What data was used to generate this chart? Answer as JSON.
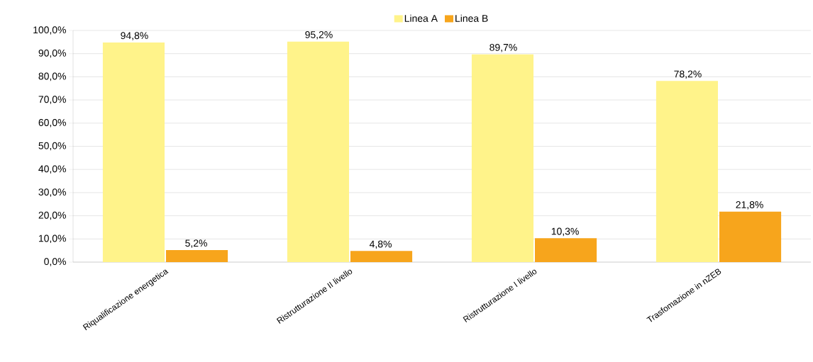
{
  "chart_data": {
    "type": "bar",
    "categories": [
      "Riqualificazione energetica",
      "Ristrutturazione II livello",
      "Ristrutturazione I livello",
      "Trasfomazione in nZEB"
    ],
    "series": [
      {
        "name": "Linea A",
        "color": "#fff38a",
        "values": [
          94.8,
          95.2,
          89.7,
          78.2
        ],
        "value_labels": [
          "94,8%",
          "95,2%",
          "89,7%",
          "78,2%"
        ]
      },
      {
        "name": "Linea B",
        "color": "#f7a51c",
        "values": [
          5.2,
          4.8,
          10.3,
          21.8
        ],
        "value_labels": [
          "5,2%",
          "4,8%",
          "10,3%",
          "21,8%"
        ]
      }
    ],
    "ylim": [
      0,
      100
    ],
    "yticks": [
      {
        "value": 0,
        "label": "0,0%"
      },
      {
        "value": 10,
        "label": "10,0%"
      },
      {
        "value": 20,
        "label": "20,0%"
      },
      {
        "value": 30,
        "label": "30,0%"
      },
      {
        "value": 40,
        "label": "40,0%"
      },
      {
        "value": 50,
        "label": "50,0%"
      },
      {
        "value": 60,
        "label": "60,0%"
      },
      {
        "value": 70,
        "label": "70,0%"
      },
      {
        "value": 80,
        "label": "80,0%"
      },
      {
        "value": 90,
        "label": "90,0%"
      },
      {
        "value": 100,
        "label": "100,0%"
      }
    ],
    "grid": "y",
    "legend": "top"
  }
}
